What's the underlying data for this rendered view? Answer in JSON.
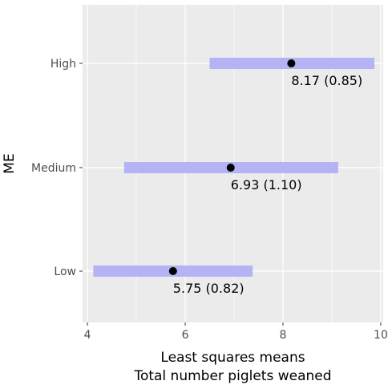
{
  "chart_data": {
    "type": "interval",
    "title": "",
    "xlabel": "Least squares means",
    "xlabel2": "Total number piglets weaned",
    "ylabel": "ME",
    "xlim": [
      3.9,
      10.05
    ],
    "xticks": [
      4,
      6,
      8,
      10
    ],
    "categories": [
      "High",
      "Medium",
      "Low"
    ],
    "points": [
      {
        "category": "High",
        "mean": 8.17,
        "se": 0.85,
        "lower": 6.5,
        "upper": 9.87,
        "label": "8.17 (0.85)"
      },
      {
        "category": "Medium",
        "mean": 6.93,
        "se": 1.1,
        "lower": 4.75,
        "upper": 9.13,
        "label": "6.93 (1.10)"
      },
      {
        "category": "Low",
        "mean": 5.75,
        "se": 0.82,
        "lower": 4.12,
        "upper": 7.38,
        "label": "5.75 (0.82)"
      }
    ],
    "grid": true,
    "colors": {
      "panel": "#ebebeb",
      "grid": "#ffffff",
      "interval": "#b3b3f5",
      "point": "#000000"
    }
  }
}
